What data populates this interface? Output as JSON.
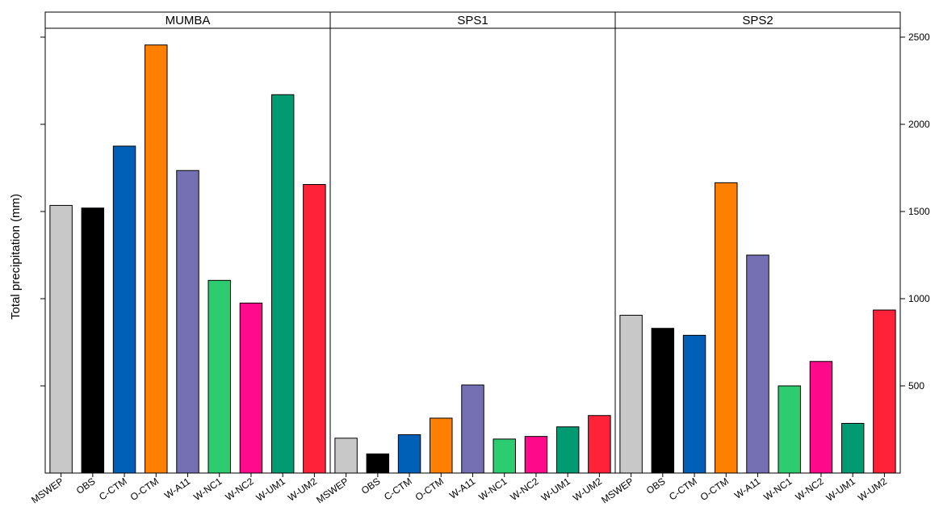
{
  "chart_data": {
    "type": "bar",
    "ylabel": "Total precipitation (mm)",
    "ylim": [
      0,
      2500
    ],
    "y_ticks_left": [
      500,
      1000,
      1500,
      2000,
      2500
    ],
    "y_ticks_right": [
      500,
      1000,
      1500,
      2000,
      2500
    ],
    "y_tick_labels_right": [
      "500",
      "1000",
      "1500",
      "2000",
      "2500"
    ],
    "categories": [
      "MSWEP",
      "OBS",
      "C-CTM",
      "O-CTM",
      "W-A11",
      "W-NC1",
      "W-NC2",
      "W-UM1",
      "W-UM2"
    ],
    "colors": [
      "#c8c8c8",
      "#000000",
      "#0060b8",
      "#ff7f00",
      "#7570b3",
      "#2ecc71",
      "#ff0a8a",
      "#009b72",
      "#ff2238"
    ],
    "panels": [
      {
        "name": "MUMBA",
        "values": [
          1535,
          1520,
          1875,
          2455,
          1735,
          1105,
          975,
          2170,
          1655
        ]
      },
      {
        "name": "SPS1",
        "values": [
          200,
          110,
          220,
          315,
          505,
          195,
          210,
          265,
          330
        ]
      },
      {
        "name": "SPS2",
        "values": [
          905,
          830,
          790,
          1665,
          1250,
          500,
          640,
          285,
          935
        ]
      }
    ],
    "grid": false,
    "legend": "none"
  }
}
